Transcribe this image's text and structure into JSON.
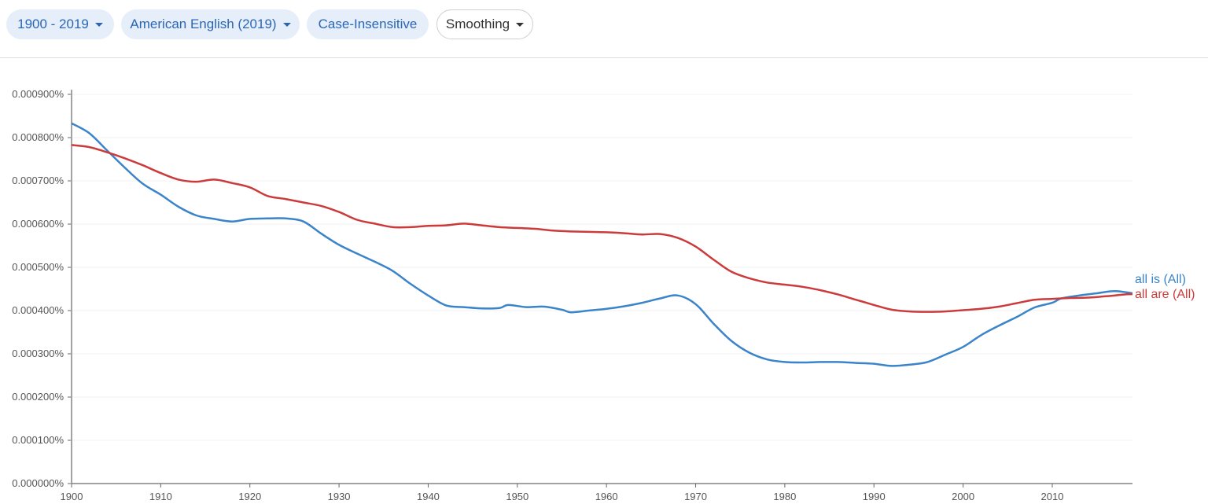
{
  "toolbar": {
    "range_label": "1900 - 2019",
    "corpus_label": "American English (2019)",
    "case_label": "Case-Insensitive",
    "smoothing_label": "Smoothing"
  },
  "colors": {
    "accent": "#2a66b5",
    "chip_bg": "#e6eefa",
    "series_is": "#3b84c9",
    "series_are": "#cc3b3b"
  },
  "chart_data": {
    "type": "line",
    "title": "",
    "xlabel": "",
    "ylabel": "",
    "xlim": [
      1900,
      2019
    ],
    "ylim": [
      0,
      0.0009
    ],
    "y_ticks": [
      {
        "value": 0.0009,
        "label": "0.000900%"
      },
      {
        "value": 0.0008,
        "label": "0.000800%"
      },
      {
        "value": 0.0007,
        "label": "0.000700%"
      },
      {
        "value": 0.0006,
        "label": "0.000600%"
      },
      {
        "value": 0.0005,
        "label": "0.000500%"
      },
      {
        "value": 0.0004,
        "label": "0.000400%"
      },
      {
        "value": 0.0003,
        "label": "0.000300%"
      },
      {
        "value": 0.0002,
        "label": "0.000200%"
      },
      {
        "value": 0.0001,
        "label": "0.000100%"
      },
      {
        "value": 0.0,
        "label": "0.000000%"
      }
    ],
    "x_ticks": [
      1900,
      1910,
      1920,
      1930,
      1940,
      1950,
      1960,
      1970,
      1980,
      1990,
      2000,
      2010
    ],
    "grid": true,
    "series": [
      {
        "name": "all is (All)",
        "color": "#3b84c9",
        "x": [
          1900,
          1902,
          1904,
          1906,
          1908,
          1910,
          1912,
          1914,
          1916,
          1918,
          1920,
          1922,
          1924,
          1926,
          1928,
          1930,
          1932,
          1934,
          1936,
          1938,
          1940,
          1942,
          1944,
          1946,
          1948,
          1949,
          1951,
          1953,
          1955,
          1956,
          1958,
          1960,
          1962,
          1964,
          1966,
          1968,
          1970,
          1972,
          1974,
          1976,
          1978,
          1980,
          1982,
          1984,
          1986,
          1988,
          1990,
          1992,
          1994,
          1996,
          1998,
          2000,
          2002,
          2004,
          2006,
          2008,
          2010,
          2011,
          2013,
          2015,
          2017,
          2019
        ],
        "values": [
          0.000833,
          0.00081,
          0.00077,
          0.00073,
          0.000693,
          0.000668,
          0.00064,
          0.00062,
          0.000612,
          0.000606,
          0.000612,
          0.000613,
          0.000613,
          0.000606,
          0.000578,
          0.000552,
          0.000532,
          0.000513,
          0.000492,
          0.000462,
          0.000435,
          0.000412,
          0.000408,
          0.000405,
          0.000406,
          0.000413,
          0.000408,
          0.000409,
          0.000402,
          0.000396,
          0.0004,
          0.000404,
          0.00041,
          0.000418,
          0.000428,
          0.000435,
          0.000415,
          0.00037,
          0.00033,
          0.000303,
          0.000287,
          0.000281,
          0.00028,
          0.000281,
          0.000281,
          0.000279,
          0.000277,
          0.000272,
          0.000275,
          0.000281,
          0.000298,
          0.000316,
          0.000343,
          0.000365,
          0.000385,
          0.000407,
          0.000418,
          0.000428,
          0.000435,
          0.00044,
          0.000445,
          0.00044
        ]
      },
      {
        "name": "all are (All)",
        "color": "#cc3b3b",
        "x": [
          1900,
          1902,
          1904,
          1906,
          1908,
          1910,
          1912,
          1914,
          1916,
          1918,
          1920,
          1922,
          1924,
          1926,
          1928,
          1930,
          1932,
          1934,
          1936,
          1938,
          1940,
          1942,
          1944,
          1946,
          1948,
          1950,
          1952,
          1954,
          1956,
          1958,
          1960,
          1962,
          1964,
          1966,
          1968,
          1970,
          1972,
          1974,
          1976,
          1978,
          1980,
          1982,
          1984,
          1986,
          1988,
          1990,
          1992,
          1994,
          1996,
          1998,
          2000,
          2002,
          2004,
          2006,
          2008,
          2010,
          2012,
          2014,
          2016,
          2018,
          2019
        ],
        "values": [
          0.000783,
          0.000778,
          0.000766,
          0.000752,
          0.000736,
          0.000718,
          0.000703,
          0.000698,
          0.000703,
          0.000695,
          0.000685,
          0.000665,
          0.000658,
          0.00065,
          0.000642,
          0.000628,
          0.00061,
          0.000601,
          0.000593,
          0.000593,
          0.000596,
          0.000597,
          0.000601,
          0.000597,
          0.000593,
          0.000591,
          0.000589,
          0.000585,
          0.000583,
          0.000582,
          0.000581,
          0.000579,
          0.000576,
          0.000577,
          0.000568,
          0.000548,
          0.000518,
          0.00049,
          0.000475,
          0.000465,
          0.00046,
          0.000455,
          0.000447,
          0.000437,
          0.000425,
          0.000413,
          0.000402,
          0.000398,
          0.000397,
          0.000398,
          0.000401,
          0.000404,
          0.000409,
          0.000417,
          0.000425,
          0.000427,
          0.000429,
          0.00043,
          0.000433,
          0.000437,
          0.000438
        ]
      }
    ],
    "legend_placement": "right, at line ends"
  }
}
